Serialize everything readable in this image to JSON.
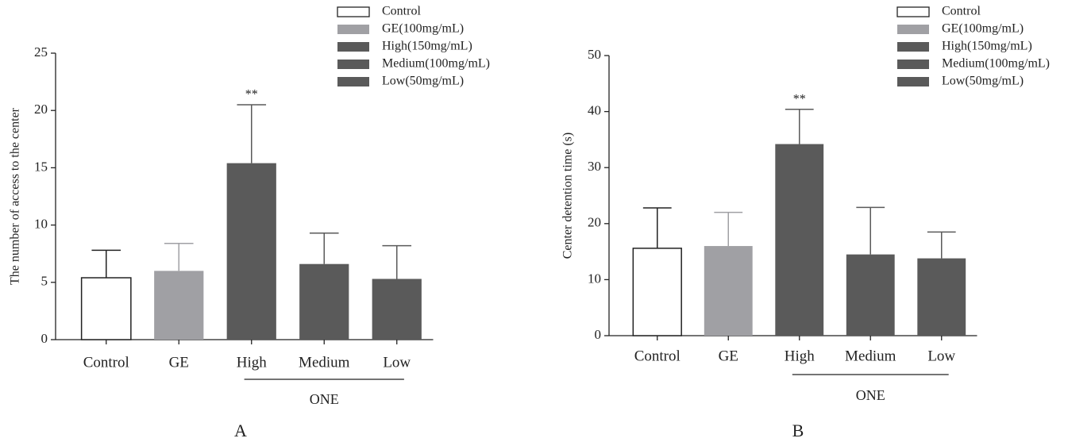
{
  "chart_data": [
    {
      "type": "bar",
      "y_label": "The number of access to the center",
      "categories": [
        "Control",
        "GE",
        "High",
        "Medium",
        "Low"
      ],
      "values": [
        5.4,
        6.0,
        15.4,
        6.6,
        5.3
      ],
      "errors": [
        2.4,
        2.4,
        5.1,
        2.7,
        2.9
      ],
      "colors": [
        "#ffffff",
        "#a0a0a4",
        "#5a5a5a",
        "#5a5a5a",
        "#5a5a5a"
      ],
      "legend": [
        {
          "label": "Control",
          "color": "#ffffff"
        },
        {
          "label": "GE(100mg/mL)",
          "color": "#a0a0a4"
        },
        {
          "label": "High(150mg/mL)",
          "color": "#5a5a5a"
        },
        {
          "label": "Medium(100mg/mL)",
          "color": "#5a5a5a"
        },
        {
          "label": "Low(50mg/mL)",
          "color": "#5a5a5a"
        }
      ],
      "ylim": [
        0,
        25
      ],
      "yticks": [
        0,
        5,
        10,
        15,
        20,
        25
      ],
      "annotations": [
        {
          "text": "**",
          "category": "High"
        }
      ],
      "group": {
        "label": "ONE",
        "from": "High",
        "to": "Low"
      },
      "panel_label": "A"
    },
    {
      "type": "bar",
      "y_label": "Center detention time (s)",
      "categories": [
        "Control",
        "GE",
        "High",
        "Medium",
        "Low"
      ],
      "values": [
        15.6,
        16.0,
        34.2,
        14.5,
        13.8
      ],
      "errors": [
        7.2,
        6.0,
        6.2,
        8.4,
        4.7
      ],
      "colors": [
        "#ffffff",
        "#a0a0a4",
        "#5a5a5a",
        "#5a5a5a",
        "#5a5a5a"
      ],
      "legend": [
        {
          "label": "Control",
          "color": "#ffffff"
        },
        {
          "label": "GE(100mg/mL)",
          "color": "#a0a0a4"
        },
        {
          "label": "High(150mg/mL)",
          "color": "#5a5a5a"
        },
        {
          "label": "Medium(100mg/mL)",
          "color": "#5a5a5a"
        },
        {
          "label": "Low(50mg/mL)",
          "color": "#5a5a5a"
        }
      ],
      "ylim": [
        0,
        50
      ],
      "yticks": [
        0,
        10,
        20,
        30,
        40,
        50
      ],
      "annotations": [
        {
          "text": "**",
          "category": "High"
        }
      ],
      "group": {
        "label": "ONE",
        "from": "High",
        "to": "Low"
      },
      "panel_label": "B"
    }
  ]
}
